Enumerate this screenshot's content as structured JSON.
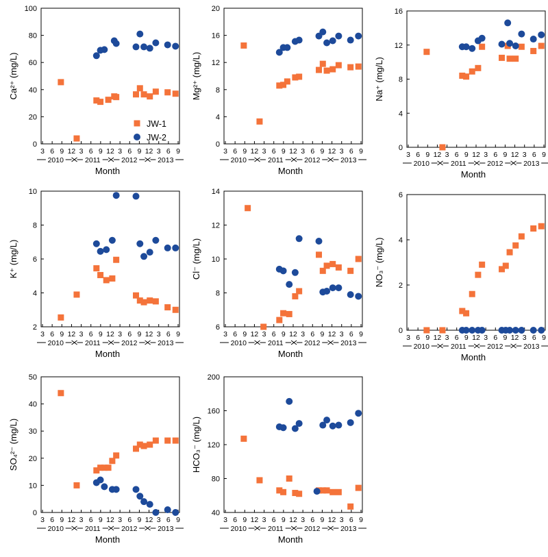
{
  "figure": {
    "x_tick_labels": [
      "3",
      "6",
      "9",
      "12",
      "3",
      "6",
      "9",
      "12",
      "3",
      "6",
      "9",
      "12",
      "3",
      "6",
      "9"
    ],
    "year_labels": [
      "2010",
      "2011",
      "2012",
      "2013"
    ],
    "xlabel": "Month",
    "legend": [
      "JW-1",
      "JW-2"
    ],
    "colors": {
      "JW-1": "#f4733a",
      "JW-2": "#1d4a9a"
    }
  },
  "chart_data": [
    {
      "type": "scatter",
      "ylabel": "Ca²⁺ (mg/L)",
      "ylim": [
        0,
        100
      ],
      "yticks": [
        0,
        20,
        40,
        60,
        80,
        100
      ],
      "legend_shown": true,
      "legend_position": "bottom-right",
      "series": [
        {
          "name": "JW-1",
          "points": [
            [
              6,
              45.5
            ],
            [
              10,
              4
            ],
            [
              15,
              32
            ],
            [
              16,
              31
            ],
            [
              18,
              32.5
            ],
            [
              19.5,
              35
            ],
            [
              20,
              34.5
            ],
            [
              25,
              36.5
            ],
            [
              26,
              41
            ],
            [
              27,
              36.5
            ],
            [
              28.5,
              35
            ],
            [
              30,
              38.5
            ],
            [
              33,
              38
            ],
            [
              35,
              37
            ]
          ]
        },
        {
          "name": "JW-2",
          "points": [
            [
              15,
              65
            ],
            [
              16,
              69
            ],
            [
              17,
              69.5
            ],
            [
              19.5,
              76
            ],
            [
              20,
              74
            ],
            [
              25,
              71.5
            ],
            [
              26,
              81
            ],
            [
              27,
              71.5
            ],
            [
              28.5,
              70.5
            ],
            [
              30,
              74.5
            ],
            [
              33,
              73
            ],
            [
              35,
              72
            ]
          ]
        }
      ]
    },
    {
      "type": "scatter",
      "ylabel": "Mg²⁺ (mg/L)",
      "ylim": [
        0,
        20
      ],
      "yticks": [
        0,
        4,
        8,
        12,
        16,
        20
      ],
      "series": [
        {
          "name": "JW-1",
          "points": [
            [
              6,
              14.5
            ],
            [
              10,
              3.3
            ],
            [
              15,
              8.6
            ],
            [
              16,
              8.7
            ],
            [
              17,
              9.2
            ],
            [
              19,
              9.8
            ],
            [
              20,
              9.9
            ],
            [
              25,
              10.9
            ],
            [
              26,
              11.8
            ],
            [
              27,
              10.8
            ],
            [
              28.5,
              11
            ],
            [
              30,
              11.6
            ],
            [
              33,
              11.3
            ],
            [
              35,
              11.4
            ]
          ]
        },
        {
          "name": "JW-2",
          "points": [
            [
              15,
              13.5
            ],
            [
              16,
              14.2
            ],
            [
              17,
              14.2
            ],
            [
              19,
              15.1
            ],
            [
              20,
              15.3
            ],
            [
              25,
              15.9
            ],
            [
              26,
              16.5
            ],
            [
              27,
              14.9
            ],
            [
              28.5,
              15.2
            ],
            [
              30,
              15.9
            ],
            [
              33,
              15.3
            ],
            [
              35,
              15.9
            ]
          ]
        }
      ]
    },
    {
      "type": "scatter",
      "ylabel": "Na⁺ (mg/L)",
      "ylim": [
        0,
        16
      ],
      "yticks": [
        0,
        4,
        8,
        12,
        16
      ],
      "series": [
        {
          "name": "JW-1",
          "points": [
            [
              6,
              11.2
            ],
            [
              10,
              0
            ],
            [
              15,
              8.4
            ],
            [
              16,
              8.3
            ],
            [
              17.5,
              8.9
            ],
            [
              19,
              9.3
            ],
            [
              20,
              11.8
            ],
            [
              25,
              10.5
            ],
            [
              26.5,
              11.9
            ],
            [
              27,
              10.4
            ],
            [
              28.5,
              10.4
            ],
            [
              30,
              11.8
            ],
            [
              33,
              11.3
            ],
            [
              35,
              11.9
            ]
          ]
        },
        {
          "name": "JW-2",
          "points": [
            [
              15,
              11.8
            ],
            [
              16,
              11.8
            ],
            [
              17.5,
              11.6
            ],
            [
              19,
              12.5
            ],
            [
              20,
              12.8
            ],
            [
              25,
              12.1
            ],
            [
              26.5,
              14.6
            ],
            [
              27,
              12.2
            ],
            [
              28.5,
              11.9
            ],
            [
              30,
              13.3
            ],
            [
              33,
              12.7
            ],
            [
              35,
              13.2
            ]
          ]
        }
      ]
    },
    {
      "type": "scatter",
      "ylabel": "K⁺ (mg/L)",
      "ylim": [
        2,
        10
      ],
      "yticks": [
        2,
        4,
        6,
        8,
        10
      ],
      "series": [
        {
          "name": "JW-1",
          "points": [
            [
              6,
              2.55
            ],
            [
              10,
              3.9
            ],
            [
              15,
              5.45
            ],
            [
              16,
              5.05
            ],
            [
              17.5,
              4.75
            ],
            [
              19,
              4.85
            ],
            [
              20,
              5.95
            ],
            [
              25,
              3.85
            ],
            [
              26,
              3.55
            ],
            [
              27,
              3.45
            ],
            [
              28.5,
              3.55
            ],
            [
              30,
              3.5
            ],
            [
              33,
              3.15
            ],
            [
              35,
              3.0
            ]
          ]
        },
        {
          "name": "JW-2",
          "points": [
            [
              15,
              6.9
            ],
            [
              16,
              6.45
            ],
            [
              17.5,
              6.55
            ],
            [
              19,
              7.1
            ],
            [
              20,
              9.75
            ],
            [
              25,
              9.7
            ],
            [
              26,
              6.9
            ],
            [
              27,
              6.15
            ],
            [
              28.5,
              6.4
            ],
            [
              30,
              7.1
            ],
            [
              33,
              6.65
            ],
            [
              35,
              6.65
            ]
          ]
        }
      ]
    },
    {
      "type": "scatter",
      "ylabel": "Cl⁻ (mg/L)",
      "ylim": [
        6,
        14
      ],
      "yticks": [
        6,
        8,
        10,
        12,
        14
      ],
      "series": [
        {
          "name": "JW-1",
          "points": [
            [
              7,
              13
            ],
            [
              11,
              6
            ],
            [
              15,
              6.4
            ],
            [
              16,
              6.8
            ],
            [
              17.5,
              6.75
            ],
            [
              19,
              7.8
            ],
            [
              20,
              8.1
            ],
            [
              25,
              10.25
            ],
            [
              26,
              9.3
            ],
            [
              27,
              9.6
            ],
            [
              28.5,
              9.7
            ],
            [
              30,
              9.5
            ],
            [
              33,
              9.3
            ],
            [
              35,
              10
            ]
          ]
        },
        {
          "name": "JW-2",
          "points": [
            [
              15,
              9.4
            ],
            [
              16,
              9.3
            ],
            [
              17.5,
              8.5
            ],
            [
              19,
              9.2
            ],
            [
              20,
              11.2
            ],
            [
              25,
              11.05
            ],
            [
              26,
              8.05
            ],
            [
              27,
              8.1
            ],
            [
              28.5,
              8.3
            ],
            [
              30,
              8.3
            ],
            [
              33,
              7.9
            ],
            [
              35,
              7.8
            ]
          ]
        }
      ]
    },
    {
      "type": "scatter",
      "ylabel": "NO₃⁻ (mg/L)",
      "ylim": [
        0,
        6
      ],
      "yticks": [
        0,
        2,
        4,
        6
      ],
      "series": [
        {
          "name": "JW-1",
          "points": [
            [
              6,
              0
            ],
            [
              10,
              0
            ],
            [
              15,
              0.85
            ],
            [
              16,
              0.75
            ],
            [
              17.5,
              1.6
            ],
            [
              19,
              2.45
            ],
            [
              20,
              2.9
            ],
            [
              25,
              2.7
            ],
            [
              26,
              2.85
            ],
            [
              27,
              3.45
            ],
            [
              28.5,
              3.75
            ],
            [
              30,
              4.15
            ],
            [
              33,
              4.5
            ],
            [
              35,
              4.6
            ]
          ]
        },
        {
          "name": "JW-2",
          "points": [
            [
              15,
              0
            ],
            [
              16,
              0
            ],
            [
              17.5,
              0
            ],
            [
              19,
              0
            ],
            [
              20,
              0
            ],
            [
              25,
              0
            ],
            [
              26,
              0
            ],
            [
              27,
              0
            ],
            [
              28.5,
              0
            ],
            [
              30,
              0
            ],
            [
              33,
              0
            ],
            [
              35,
              0
            ]
          ]
        }
      ]
    },
    {
      "type": "scatter",
      "ylabel": "SO₄²⁻ (mg/L)",
      "ylim": [
        0,
        50
      ],
      "yticks": [
        0,
        10,
        20,
        30,
        40,
        50
      ],
      "series": [
        {
          "name": "JW-1",
          "points": [
            [
              6,
              44
            ],
            [
              10,
              10
            ],
            [
              15,
              15.5
            ],
            [
              16,
              16.5
            ],
            [
              17,
              16.5
            ],
            [
              18,
              16.5
            ],
            [
              19,
              19
            ],
            [
              20,
              21
            ],
            [
              25,
              23.5
            ],
            [
              26,
              25
            ],
            [
              27,
              24.5
            ],
            [
              28.5,
              25
            ],
            [
              30,
              26.5
            ],
            [
              33,
              26.5
            ],
            [
              35,
              26.5
            ]
          ]
        },
        {
          "name": "JW-2",
          "points": [
            [
              15,
              11
            ],
            [
              16,
              12
            ],
            [
              17,
              9.5
            ],
            [
              19,
              8.5
            ],
            [
              20,
              8.5
            ],
            [
              25,
              8.5
            ],
            [
              26,
              6
            ],
            [
              27,
              4
            ],
            [
              28.5,
              3
            ],
            [
              30,
              0
            ],
            [
              33,
              1
            ],
            [
              35,
              0
            ]
          ]
        }
      ]
    },
    {
      "type": "scatter",
      "ylabel": "HCO₃⁻ (mg/L)",
      "ylim": [
        40,
        200
      ],
      "yticks": [
        40,
        80,
        120,
        160,
        200
      ],
      "series": [
        {
          "name": "JW-1",
          "points": [
            [
              6,
              127
            ],
            [
              10,
              78
            ],
            [
              15,
              66
            ],
            [
              16,
              64
            ],
            [
              17.5,
              80
            ],
            [
              19,
              63
            ],
            [
              20,
              62
            ],
            [
              25,
              66
            ],
            [
              26,
              66
            ],
            [
              27,
              66
            ],
            [
              28.5,
              64
            ],
            [
              30,
              64
            ],
            [
              33,
              47
            ],
            [
              35,
              69
            ]
          ]
        },
        {
          "name": "JW-2",
          "points": [
            [
              15,
              141
            ],
            [
              16,
              140
            ],
            [
              17.5,
              171
            ],
            [
              19,
              139
            ],
            [
              20,
              145
            ],
            [
              24.5,
              65
            ],
            [
              26,
              143
            ],
            [
              27,
              149
            ],
            [
              28.5,
              142
            ],
            [
              30,
              143
            ],
            [
              33,
              146
            ],
            [
              35,
              157
            ]
          ]
        }
      ]
    }
  ]
}
